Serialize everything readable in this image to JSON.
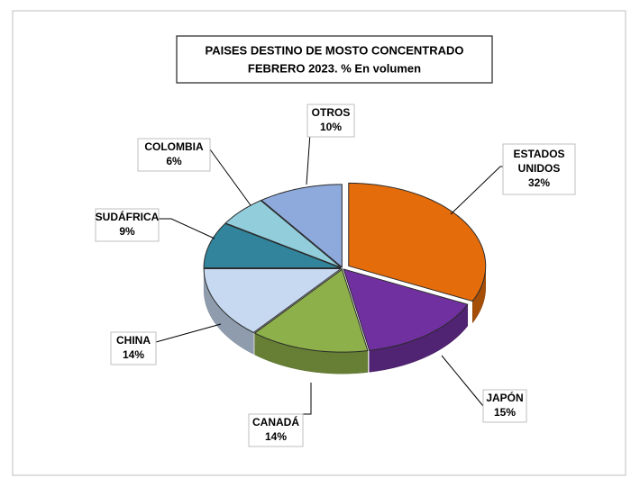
{
  "chart_data": {
    "type": "pie3d",
    "title": [
      "PAISES DESTINO DE MOSTO CONCENTRADO",
      "FEBRERO 2023. % En volumen"
    ],
    "categories": [
      "ESTADOS UNIDOS",
      "JAPÓN",
      "CANADÁ",
      "CHINA",
      "SUDÁFRICA",
      "COLOMBIA",
      "OTROS"
    ],
    "values": [
      32,
      15,
      14,
      14,
      9,
      6,
      10
    ],
    "value_labels": [
      "32%",
      "15%",
      "14%",
      "14%",
      "9%",
      "6%",
      "10%"
    ],
    "colors": [
      "#e46c0a",
      "#7030a0",
      "#8db04a",
      "#c6d9f1",
      "#31849b",
      "#92cddc",
      "#8ea9db"
    ]
  }
}
